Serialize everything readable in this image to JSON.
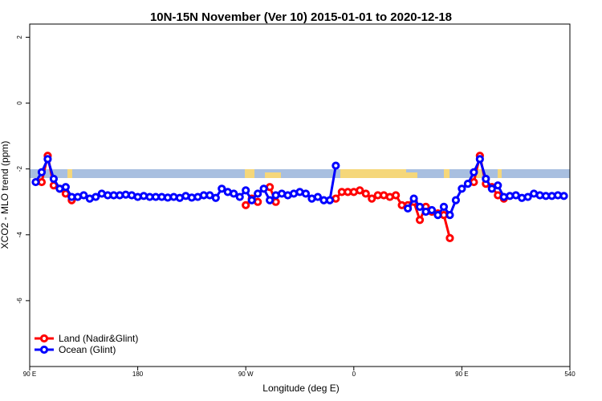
{
  "chart_data": {
    "type": "line",
    "title": "10N-15N November (Ver 10)   2015-01-01 to 2020-12-18",
    "x_label": "Longitude (deg E)",
    "y_label": "XCO2 - MLO trend (ppm)",
    "x": [
      95,
      100,
      105,
      110,
      115,
      120,
      125,
      130,
      135,
      140,
      145,
      150,
      155,
      160,
      165,
      170,
      175,
      180,
      185,
      190,
      195,
      200,
      205,
      210,
      215,
      220,
      225,
      230,
      235,
      240,
      245,
      250,
      255,
      260,
      265,
      270,
      275,
      280,
      285,
      290,
      295,
      300,
      305,
      310,
      315,
      320,
      325,
      330,
      335,
      340,
      345,
      350,
      355,
      360,
      365,
      370,
      375,
      380,
      385,
      390,
      395,
      400,
      405,
      410,
      415,
      420,
      425,
      430,
      435,
      440,
      445,
      450,
      455,
      460,
      465,
      470,
      475,
      480,
      485,
      490,
      495,
      500,
      505,
      510,
      515,
      520,
      525,
      530,
      535
    ],
    "series": [
      {
        "name": "Land (Nadir&Glint)",
        "color": "#ff0000",
        "values": [
          null,
          -2.4,
          -1.6,
          -2.5,
          -2.6,
          -2.75,
          -2.95,
          null,
          null,
          null,
          null,
          null,
          null,
          null,
          null,
          null,
          null,
          null,
          null,
          null,
          null,
          null,
          null,
          null,
          null,
          null,
          null,
          null,
          null,
          null,
          null,
          null,
          null,
          null,
          null,
          -3.1,
          -2.9,
          -3.0,
          null,
          -2.55,
          -3.0,
          null,
          null,
          null,
          null,
          null,
          null,
          null,
          null,
          null,
          -2.9,
          -2.7,
          -2.7,
          -2.7,
          -2.65,
          -2.75,
          -2.9,
          -2.8,
          -2.8,
          -2.85,
          -2.8,
          -3.1,
          -3.1,
          -3.0,
          -3.55,
          -3.15,
          -3.3,
          -3.35,
          -3.4,
          -4.1,
          null,
          null,
          null,
          -2.4,
          -1.6,
          -2.45,
          -2.55,
          -2.8,
          -2.9,
          null,
          null,
          null,
          null,
          null,
          null,
          null,
          null,
          null,
          null
        ]
      },
      {
        "name": "Ocean (Glint)",
        "color": "#0000ff",
        "values": [
          -2.4,
          -2.1,
          -1.7,
          -2.3,
          -2.6,
          -2.55,
          -2.85,
          -2.85,
          -2.8,
          -2.9,
          -2.85,
          -2.75,
          -2.8,
          -2.8,
          -2.8,
          -2.78,
          -2.8,
          -2.85,
          -2.82,
          -2.85,
          -2.85,
          -2.85,
          -2.87,
          -2.85,
          -2.88,
          -2.82,
          -2.87,
          -2.85,
          -2.8,
          -2.8,
          -2.88,
          -2.6,
          -2.7,
          -2.75,
          -2.85,
          -2.65,
          -2.95,
          -2.75,
          -2.6,
          -2.95,
          -2.8,
          -2.75,
          -2.8,
          -2.75,
          -2.7,
          -2.75,
          -2.9,
          -2.85,
          -2.95,
          -2.95,
          -1.9,
          null,
          null,
          null,
          null,
          null,
          null,
          null,
          null,
          null,
          null,
          null,
          -3.2,
          -2.9,
          -3.15,
          -3.3,
          -3.25,
          -3.4,
          -3.15,
          -3.4,
          -2.95,
          -2.6,
          -2.45,
          -2.1,
          -1.7,
          -2.3,
          -2.6,
          -2.5,
          -2.85,
          -2.82,
          -2.8,
          -2.88,
          -2.85,
          -2.75,
          -2.8,
          -2.82,
          -2.82,
          -2.8,
          -2.82
        ]
      }
    ],
    "xlim": [
      90,
      540
    ],
    "xticks": [
      {
        "value": 90,
        "label": "90 E"
      },
      180,
      {
        "value": 270,
        "label": "90 W"
      },
      {
        "value": 360,
        "label": "0"
      },
      {
        "value": 450,
        "label": "90 E"
      },
      540
    ],
    "ylim": [
      -8,
      2.4
    ],
    "yticks": [
      -6,
      -4,
      -2,
      0,
      2
    ],
    "legend": "bottom-left"
  }
}
